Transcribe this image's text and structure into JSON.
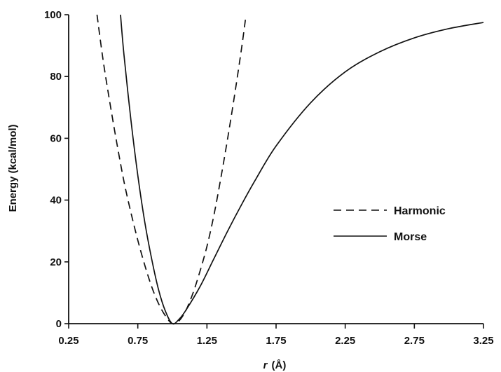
{
  "chart_data": {
    "type": "line",
    "title": "",
    "xlabel_italic": "r",
    "xlabel_unit": "(Å)",
    "ylabel": "Energy  (kcal/mol)",
    "xlim": [
      0.25,
      3.25
    ],
    "ylim": [
      0,
      100
    ],
    "x_ticks": [
      "0.25",
      "0.75",
      "1.25",
      "1.75",
      "2.25",
      "2.75",
      "3.25"
    ],
    "y_ticks": [
      "0",
      "20",
      "40",
      "60",
      "80",
      "100"
    ],
    "grid": false,
    "legend_position": "right-middle",
    "series": [
      {
        "name": "Harmonic",
        "style": "dashed",
        "color": "#111111",
        "x": [
          0.455,
          0.5,
          0.55,
          0.6,
          0.65,
          0.7,
          0.75,
          0.8,
          0.85,
          0.9,
          0.95,
          1.0,
          1.05,
          1.1,
          1.15,
          1.2,
          1.25,
          1.3,
          1.35,
          1.4,
          1.45,
          1.5,
          1.53
        ],
        "y": [
          100,
          85,
          71,
          58,
          46,
          36,
          27,
          19,
          12,
          6.5,
          2.5,
          0,
          1.0,
          4.5,
          10,
          17,
          25,
          35,
          47,
          60,
          74,
          89,
          99
        ]
      },
      {
        "name": "Morse",
        "style": "solid",
        "color": "#111111",
        "x": [
          0.625,
          0.65,
          0.7,
          0.75,
          0.8,
          0.85,
          0.9,
          0.95,
          1.0,
          1.05,
          1.1,
          1.2,
          1.3,
          1.4,
          1.5,
          1.6,
          1.75,
          2.0,
          2.25,
          2.5,
          2.75,
          3.0,
          3.25
        ],
        "y": [
          100,
          87,
          66,
          48,
          33,
          21,
          11,
          4,
          0,
          1.5,
          4.5,
          12,
          21,
          30,
          38.5,
          46.5,
          57.5,
          71.5,
          81.5,
          88,
          92.5,
          95.5,
          97.5
        ]
      }
    ],
    "legend": [
      {
        "label": "Harmonic",
        "style": "dashed"
      },
      {
        "label": "Morse",
        "style": "solid"
      }
    ]
  }
}
